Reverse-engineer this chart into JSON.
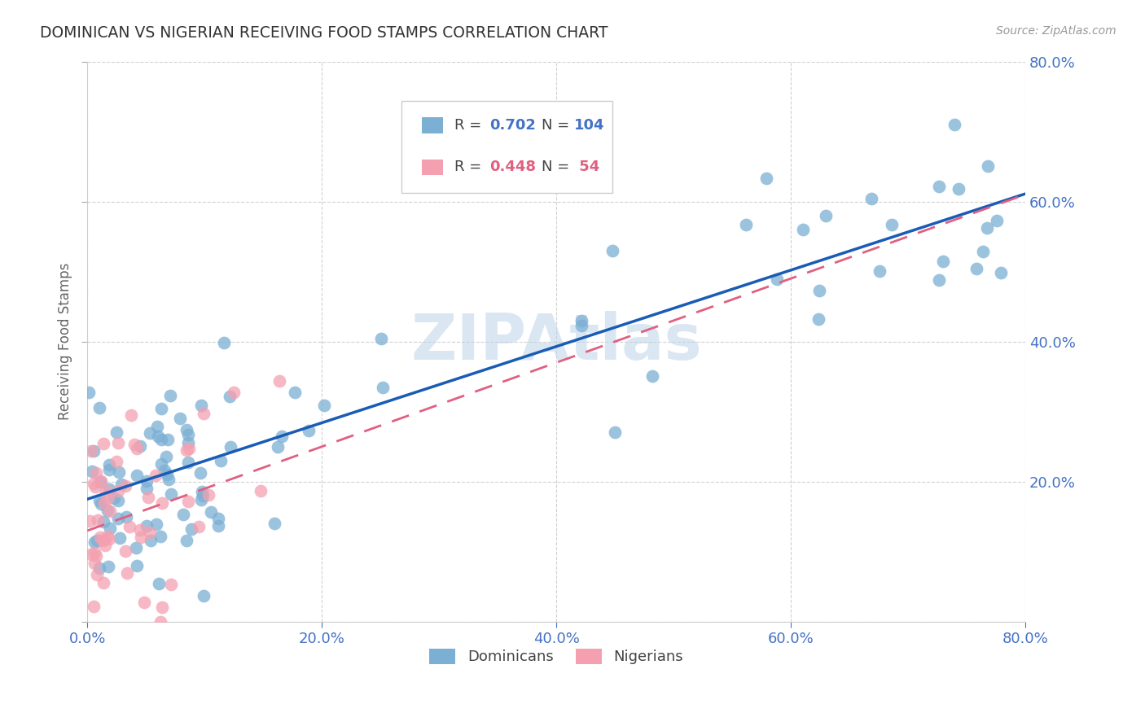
{
  "title": "DOMINICAN VS NIGERIAN RECEIVING FOOD STAMPS CORRELATION CHART",
  "source": "Source: ZipAtlas.com",
  "ylabel": "Receiving Food Stamps",
  "watermark": "ZIPAtlas",
  "xlim": [
    0.0,
    0.8
  ],
  "ylim": [
    0.0,
    0.8
  ],
  "dominican_R": 0.702,
  "dominican_N": 104,
  "nigerian_R": 0.448,
  "nigerian_N": 54,
  "dominican_color": "#7bafd4",
  "nigerian_color": "#f4a0b0",
  "trend_dominican_color": "#1a5cb5",
  "trend_nigerian_color": "#e06080",
  "background_color": "#ffffff",
  "grid_color": "#cccccc",
  "title_color": "#333333",
  "axis_label_color": "#666666",
  "tick_label_color": "#4472c4",
  "right_tick_color": "#4472c4",
  "legend_label_color_dominican": "#4472c4",
  "legend_label_color_nigerian": "#e06080",
  "dom_intercept": 0.175,
  "dom_slope": 0.545,
  "nig_intercept": 0.13,
  "nig_slope": 0.6,
  "dominican_seed": 12,
  "nigerian_seed": 99
}
